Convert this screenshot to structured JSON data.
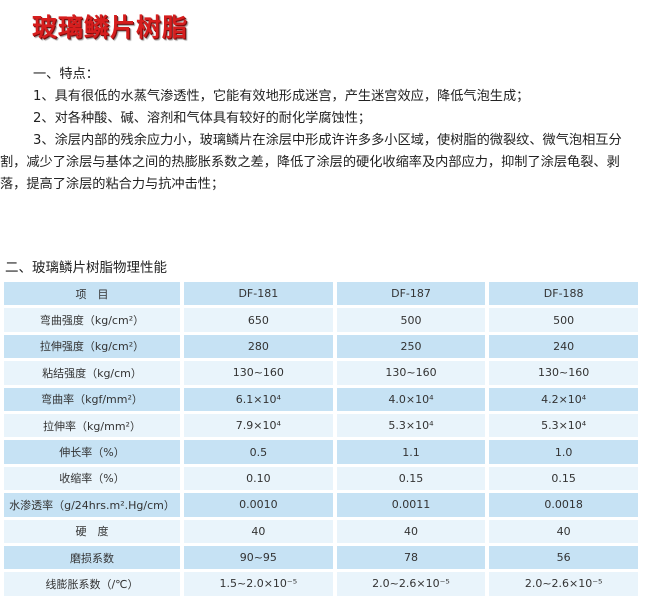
{
  "title": "玻璃鳞片树脂",
  "features": {
    "heading": "一、特点：",
    "items": [
      "1、具有很低的水蒸气渗透性，它能有效地形成迷宫，产生迷宫效应，降低气泡生成；",
      "2、对各种酸、碱、溶剂和气体具有较好的耐化学腐蚀性；",
      "3、涂层内部的残余应力小，玻璃鳞片在涂层中形成许许多多小区域，使树脂的微裂纹、微气泡相互分割，减少了涂层与基体之间的热膨胀系数之差，降低了涂层的硬化收缩率及内部应力，抑制了涂层龟裂、剥落，提高了涂层的粘合力与抗冲击性；"
    ]
  },
  "properties": {
    "heading": "二、玻璃鳞片树脂物理性能",
    "columns": [
      "项　目",
      "DF-181",
      "DF-187",
      "DF-188"
    ],
    "rows": [
      [
        "弯曲强度（kg/cm²）",
        "650",
        "500",
        "500"
      ],
      [
        "拉伸强度（kg/cm²）",
        "280",
        "250",
        "240"
      ],
      [
        "粘结强度（kg/cm）",
        "130~160",
        "130~160",
        "130~160"
      ],
      [
        "弯曲率（kgf/mm²）",
        "6.1×10⁴",
        "4.0×10⁴",
        "4.2×10⁴"
      ],
      [
        "拉伸率（kg/mm²）",
        "7.9×10⁴",
        "5.3×10⁴",
        "5.3×10⁴"
      ],
      [
        "伸长率（%）",
        "0.5",
        "1.1",
        "1.0"
      ],
      [
        "收缩率（%）",
        "0.10",
        "0.15",
        "0.15"
      ],
      [
        "水渗透率（g/24hrs.m².Hg/cm）",
        "0.0010",
        "0.0011",
        "0.0018"
      ],
      [
        "硬　度",
        "40",
        "40",
        "40"
      ],
      [
        "磨损系数",
        "90~95",
        "78",
        "56"
      ],
      [
        "线膨胀系数（/℃）",
        "1.5~2.0×10⁻⁵",
        "2.0~2.6×10⁻⁵",
        "2.0~2.6×10⁻⁵"
      ]
    ]
  },
  "colors": {
    "title": "#d61e1e",
    "row_dark": "#c6e2f4",
    "row_light": "#e9f4fb"
  }
}
